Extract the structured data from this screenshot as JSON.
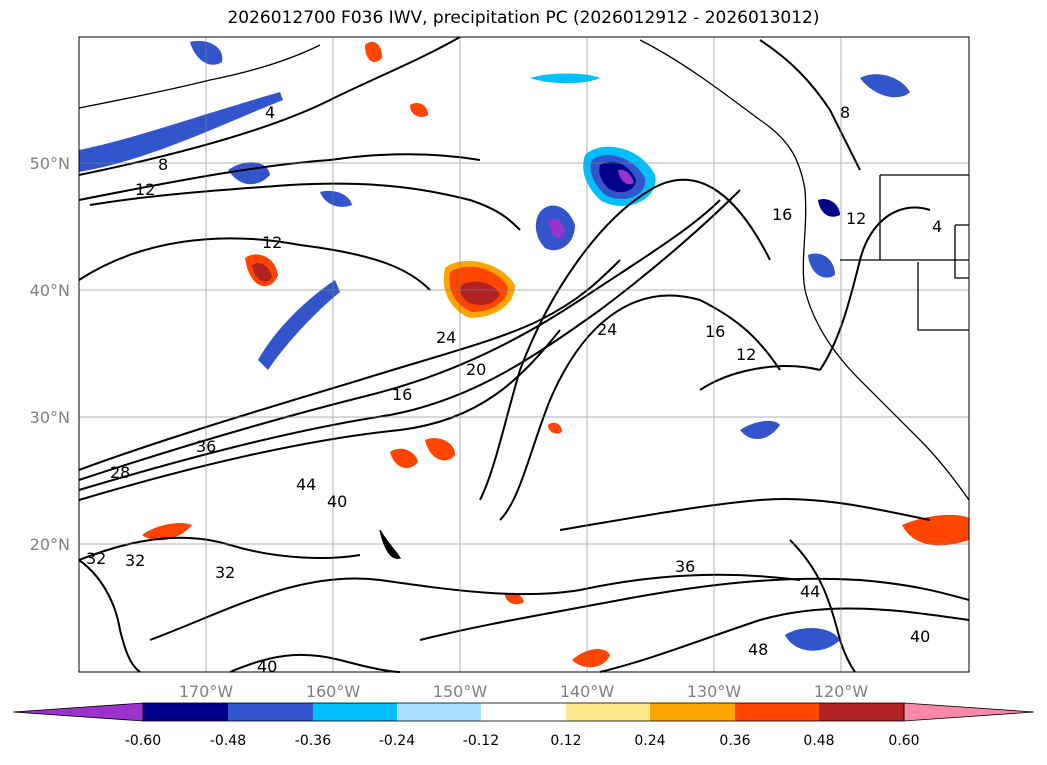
{
  "title": "2026012700 F036 IWV, precipitation PC (2026012912 - 2026013012)",
  "map": {
    "lat_labels": [
      "50°N",
      "40°N",
      "30°N",
      "20°N"
    ],
    "lon_labels": [
      "170°W",
      "160°W",
      "150°W",
      "140°W",
      "130°W",
      "120°W"
    ],
    "gridlines": true,
    "land_color": "#ffffff",
    "coastline_color": "#000000"
  },
  "iwv_contour_labels": [
    "4",
    "8",
    "12",
    "12",
    "16",
    "16",
    "20",
    "24",
    "24",
    "28",
    "32",
    "32",
    "32",
    "36",
    "36",
    "40",
    "44",
    "40",
    "44",
    "48",
    "40",
    "12",
    "8",
    "4",
    "12",
    "16"
  ],
  "colorbar": {
    "ticks": [
      "-0.60",
      "-0.48",
      "-0.36",
      "-0.24",
      "-0.12",
      "0.12",
      "0.24",
      "0.36",
      "0.48",
      "0.60"
    ],
    "colors": [
      "#9933cc",
      "#00008b",
      "#3355cc",
      "#00bfff",
      "#aae0ff",
      "#ffffff",
      "#ffe88a",
      "#ffa500",
      "#ff4500",
      "#b22222",
      "#ff88aa"
    ],
    "extend": "both"
  }
}
